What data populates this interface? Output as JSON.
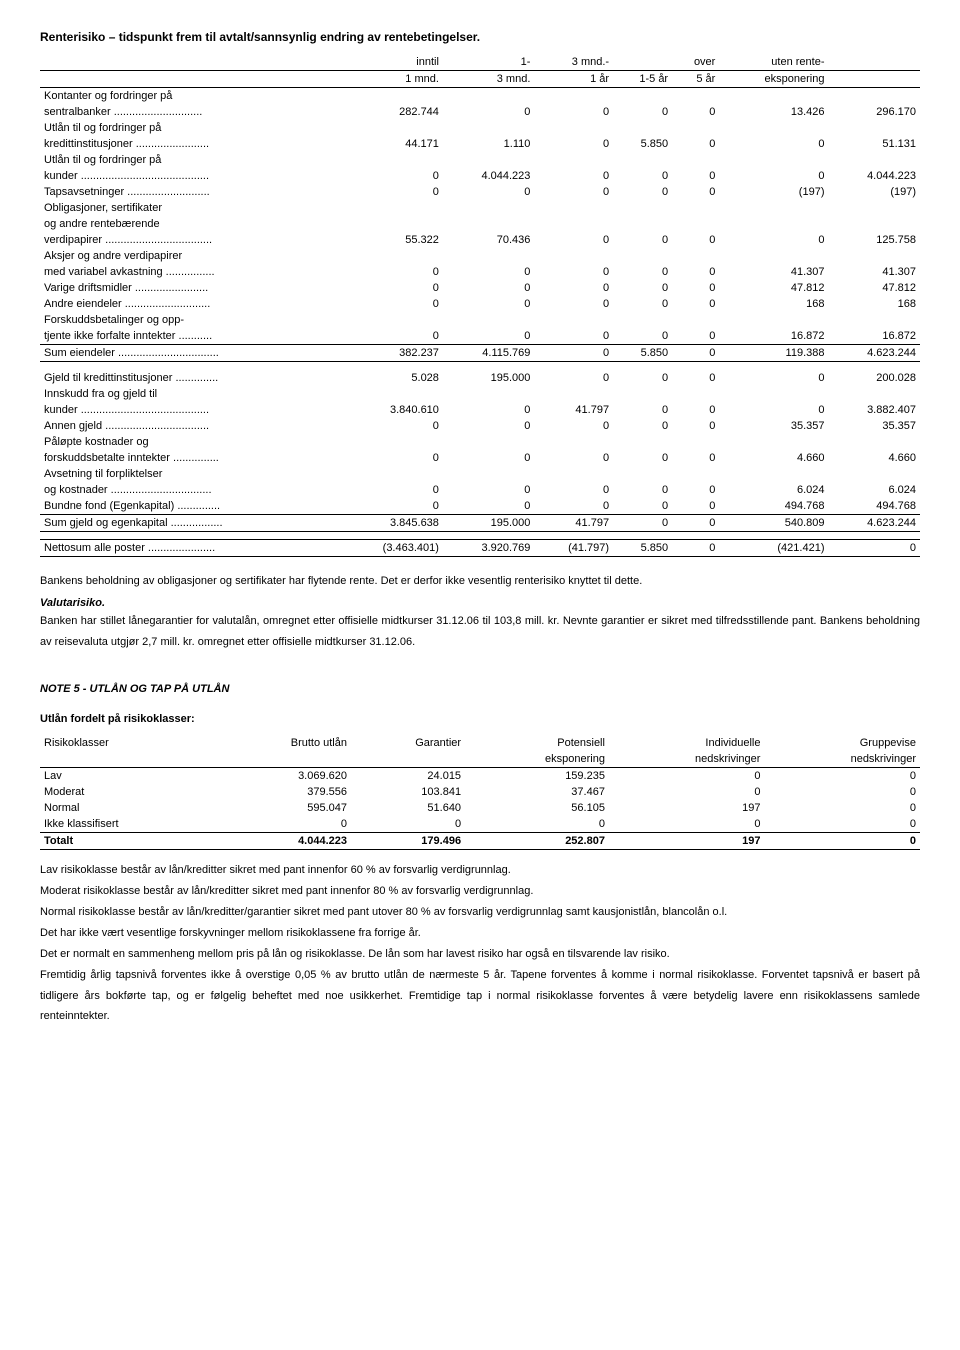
{
  "title": "Renterisiko – tidspunkt frem til avtalt/sannsynlig endring av rentebetingelser.",
  "table1": {
    "headers": {
      "c1a": "inntil",
      "c1b": "1 mnd.",
      "c2a": "1-",
      "c2b": "3 mnd.",
      "c3a": "3 mnd.-",
      "c3b": "1 år",
      "c4": "1-5 år",
      "c5a": "over",
      "c5b": "5 år",
      "c6a": "uten rente-",
      "c6b": "eksponering",
      "c7": ""
    },
    "rows": [
      {
        "label": "Kontanter og fordringer på",
        "vals": [
          "",
          "",
          "",
          "",
          "",
          "",
          ""
        ],
        "noborder": true
      },
      {
        "label": "sentralbanker .............................",
        "vals": [
          "282.744",
          "0",
          "0",
          "0",
          "0",
          "13.426",
          "296.170"
        ]
      },
      {
        "label": "Utlån til og fordringer på",
        "vals": [
          "",
          "",
          "",
          "",
          "",
          "",
          ""
        ],
        "noborder": true
      },
      {
        "label": "kredittinstitusjoner ........................",
        "vals": [
          "44.171",
          "1.110",
          "0",
          "5.850",
          "0",
          "0",
          "51.131"
        ]
      },
      {
        "label": "Utlån til og fordringer på",
        "vals": [
          "",
          "",
          "",
          "",
          "",
          "",
          ""
        ],
        "noborder": true
      },
      {
        "label": "kunder ..........................................",
        "vals": [
          "0",
          "4.044.223",
          "0",
          "0",
          "0",
          "0",
          "4.044.223"
        ]
      },
      {
        "label": "Tapsavsetninger ...........................",
        "vals": [
          "0",
          "0",
          "0",
          "0",
          "0",
          "(197)",
          "(197)"
        ]
      },
      {
        "label": "Obligasjoner, sertifikater",
        "vals": [
          "",
          "",
          "",
          "",
          "",
          "",
          ""
        ],
        "noborder": true
      },
      {
        "label": "og andre rentebærende",
        "vals": [
          "",
          "",
          "",
          "",
          "",
          "",
          ""
        ],
        "noborder": true
      },
      {
        "label": "verdipapirer ...................................",
        "vals": [
          "55.322",
          "70.436",
          "0",
          "0",
          "0",
          "0",
          "125.758"
        ]
      },
      {
        "label": "Aksjer og andre verdipapirer",
        "vals": [
          "",
          "",
          "",
          "",
          "",
          "",
          ""
        ],
        "noborder": true
      },
      {
        "label": "med variabel avkastning ................",
        "vals": [
          "0",
          "0",
          "0",
          "0",
          "0",
          "41.307",
          "41.307"
        ]
      },
      {
        "label": "Varige driftsmidler ........................",
        "vals": [
          "0",
          "0",
          "0",
          "0",
          "0",
          "47.812",
          "47.812"
        ]
      },
      {
        "label": "Andre eiendeler ............................",
        "vals": [
          "0",
          "0",
          "0",
          "0",
          "0",
          "168",
          "168"
        ]
      },
      {
        "label": "Forskuddsbetalinger og opp-",
        "vals": [
          "",
          "",
          "",
          "",
          "",
          "",
          ""
        ],
        "noborder": true
      },
      {
        "label": "tjente ikke forfalte inntekter ...........",
        "vals": [
          "0",
          "0",
          "0",
          "0",
          "0",
          "16.872",
          "16.872"
        ]
      }
    ],
    "sum1": {
      "label": "Sum eiendeler .................................",
      "vals": [
        "382.237",
        "4.115.769",
        "0",
        "5.850",
        "0",
        "119.388",
        "4.623.244"
      ]
    },
    "rows2": [
      {
        "label": "Gjeld til kredittinstitusjoner ..............",
        "vals": [
          "5.028",
          "195.000",
          "0",
          "0",
          "0",
          "0",
          "200.028"
        ]
      },
      {
        "label": "Innskudd fra og gjeld til",
        "vals": [
          "",
          "",
          "",
          "",
          "",
          "",
          ""
        ],
        "noborder": true
      },
      {
        "label": "kunder ..........................................",
        "vals": [
          "3.840.610",
          "0",
          "41.797",
          "0",
          "0",
          "0",
          "3.882.407"
        ]
      },
      {
        "label": "Annen gjeld ..................................",
        "vals": [
          "0",
          "0",
          "0",
          "0",
          "0",
          "35.357",
          "35.357"
        ]
      },
      {
        "label": "Påløpte kostnader og",
        "vals": [
          "",
          "",
          "",
          "",
          "",
          "",
          ""
        ],
        "noborder": true
      },
      {
        "label": "forskuddsbetalte inntekter ...............",
        "vals": [
          "0",
          "0",
          "0",
          "0",
          "0",
          "4.660",
          "4.660"
        ]
      },
      {
        "label": "Avsetning til forpliktelser",
        "vals": [
          "",
          "",
          "",
          "",
          "",
          "",
          ""
        ],
        "noborder": true
      },
      {
        "label": "og kostnader .................................",
        "vals": [
          "0",
          "0",
          "0",
          "0",
          "0",
          "6.024",
          "6.024"
        ]
      },
      {
        "label": "Bundne fond (Egenkapital) ..............",
        "vals": [
          "0",
          "0",
          "0",
          "0",
          "0",
          "494.768",
          "494.768"
        ]
      }
    ],
    "sum2": {
      "label": "Sum gjeld og egenkapital .................",
      "vals": [
        "3.845.638",
        "195.000",
        "41.797",
        "0",
        "0",
        "540.809",
        "4.623.244"
      ]
    },
    "net": {
      "label": "Nettosum alle poster ......................",
      "vals": [
        "(3.463.401)",
        "3.920.769",
        "(41.797)",
        "5.850",
        "0",
        "(421.421)",
        "0"
      ]
    }
  },
  "para1": "Bankens beholdning av obligasjoner og sertifikater har flytende rente. Det er derfor ikke vesentlig renterisiko knyttet til dette.",
  "valuta_title": "Valutarisiko.",
  "para2": "Banken har stillet lånegarantier for valutalån, omregnet etter offisielle midtkurser 31.12.06 til 103,8 mill. kr. Nevnte garantier er sikret med tilfredsstillende pant. Bankens beholdning av reisevaluta utgjør 2,7 mill. kr. omregnet etter offisielle midtkurser 31.12.06.",
  "note5": "NOTE 5  -  UTLÅN OG TAP PÅ UTLÅN",
  "risk_heading": "Utlån fordelt på risikoklasser:",
  "risk_table": {
    "headers": [
      "Risikoklasser",
      "Brutto utlån",
      "Garantier",
      "Potensiell",
      "Individuelle",
      "Gruppevise"
    ],
    "headers2": [
      "",
      "",
      "",
      "eksponering",
      "nedskrivinger",
      "nedskrivinger"
    ],
    "rows": [
      {
        "label": "Lav",
        "vals": [
          "3.069.620",
          "24.015",
          "159.235",
          "0",
          "0"
        ]
      },
      {
        "label": "Moderat",
        "vals": [
          "379.556",
          "103.841",
          "37.467",
          "0",
          "0"
        ]
      },
      {
        "label": "Normal",
        "vals": [
          "595.047",
          "51.640",
          "56.105",
          "197",
          "0"
        ]
      },
      {
        "label": "Ikke klassifisert",
        "vals": [
          "0",
          "0",
          "0",
          "0",
          "0"
        ]
      }
    ],
    "total": {
      "label": "Totalt",
      "vals": [
        "4.044.223",
        "179.496",
        "252.807",
        "197",
        "0"
      ]
    }
  },
  "body": [
    "Lav risikoklasse består av lån/kreditter sikret med pant innenfor 60 % av forsvarlig verdigrunnlag.",
    "Moderat risikoklasse består av lån/kreditter sikret med pant innenfor 80 % av forsvarlig verdigrunnlag.",
    "Normal risikoklasse består av lån/kreditter/garantier sikret med pant utover 80 % av forsvarlig verdigrunnlag samt kausjonistlån, blancolån o.l.",
    "Det har ikke vært vesentlige forskyvninger mellom risikoklassene fra forrige år.",
    "Det er normalt en sammenheng mellom pris på lån og risikoklasse. De lån som har lavest risiko har også en tilsvarende lav risiko.",
    "Fremtidig årlig tapsnivå forventes ikke å overstige 0,05 % av brutto utlån de nærmeste 5 år. Tapene forventes å komme i normal risikoklasse. Forventet tapsnivå er basert på tidligere års bokførte tap, og er følgelig beheftet med noe usikkerhet. Fremtidige tap i normal risikoklasse forventes å være betydelig lavere enn risikoklassens samlede renteinntekter."
  ]
}
